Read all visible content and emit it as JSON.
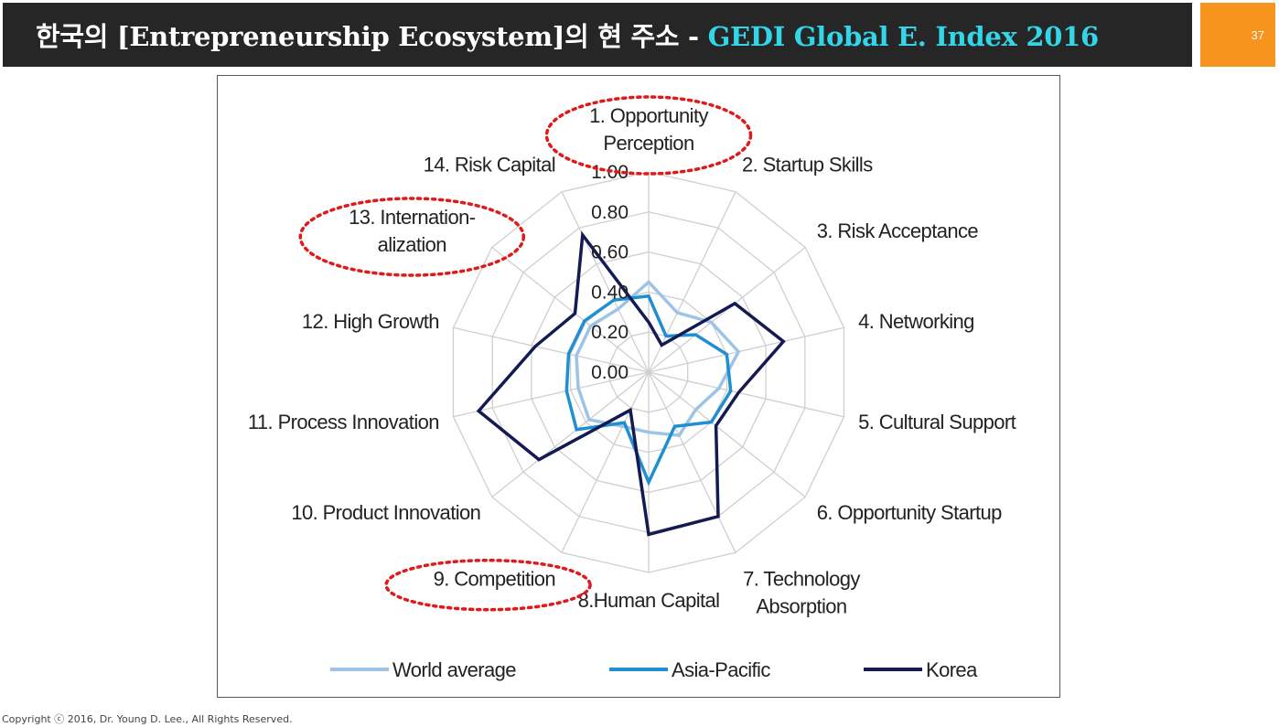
{
  "header": {
    "title_main": "한국의 [Entrepreneurship Ecosystem]의 현 주소 - ",
    "title_accent": "GEDI Global E. Index 2016",
    "page_number": "37"
  },
  "footer": {
    "copyright": "Copyright ⓒ 2016, Dr. Young D. Lee., All Rights Reserved."
  },
  "colors": {
    "header_bg": "#262626",
    "accent_cyan": "#33d6e8",
    "page_box": "#f7941d",
    "highlight_red": "#e0191b"
  },
  "chart_data": {
    "type": "radar",
    "title": "",
    "categories": [
      "1. Opportunity Perception",
      "2. Startup Skills",
      "3. Risk Acceptance",
      "4. Networking",
      "5. Cultural Support",
      "6. Opportunity Startup",
      "7. Technology Absorption",
      "8.Human Capital",
      "9. Competition",
      "10. Product Innovation",
      "11. Process Innovation",
      "12. High Growth",
      "13. Internation-alization",
      "14. Risk Capital"
    ],
    "label_lines": [
      [
        "1. Opportunity",
        "Perception"
      ],
      [
        "2. Startup Skills"
      ],
      [
        "3. Risk Acceptance"
      ],
      [
        "4. Networking"
      ],
      [
        "5. Cultural Support"
      ],
      [
        "6. Opportunity Startup"
      ],
      [
        "7. Technology",
        "Absorption"
      ],
      [
        "8.Human Capital"
      ],
      [
        "9. Competition"
      ],
      [
        "10. Product Innovation"
      ],
      [
        "11. Process Innovation"
      ],
      [
        "12. High Growth"
      ],
      [
        "13. Internation-",
        "alization"
      ],
      [
        "14. Risk Capital"
      ]
    ],
    "highlighted_categories": [
      0,
      8,
      12
    ],
    "r_ticks": [
      "0.00",
      "0.20",
      "0.40",
      "0.60",
      "0.80",
      "1.00"
    ],
    "rlim": [
      0,
      1
    ],
    "grid": true,
    "legend_position": "bottom",
    "series": [
      {
        "name": "World average",
        "color": "#9dc3e6",
        "values": [
          0.45,
          0.33,
          0.4,
          0.46,
          0.36,
          0.3,
          0.35,
          0.3,
          0.3,
          0.38,
          0.36,
          0.37,
          0.37,
          0.35
        ]
      },
      {
        "name": "Asia-Pacific",
        "color": "#1f8fd1",
        "values": [
          0.38,
          0.2,
          0.3,
          0.4,
          0.42,
          0.4,
          0.3,
          0.55,
          0.28,
          0.46,
          0.42,
          0.41,
          0.41,
          0.4
        ]
      },
      {
        "name": "Korea",
        "color": "#141a52",
        "values": [
          0.25,
          0.15,
          0.55,
          0.69,
          0.46,
          0.43,
          0.8,
          0.81,
          0.21,
          0.7,
          0.87,
          0.58,
          0.47,
          0.76
        ]
      }
    ]
  }
}
